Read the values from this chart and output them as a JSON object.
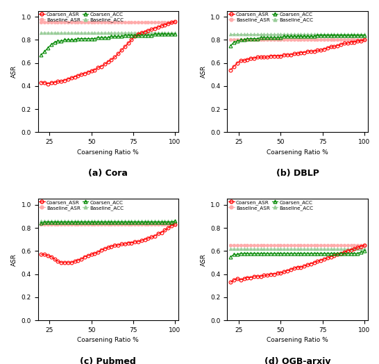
{
  "x": [
    20,
    22,
    24,
    26,
    28,
    30,
    32,
    34,
    36,
    38,
    40,
    42,
    44,
    46,
    48,
    50,
    52,
    54,
    56,
    58,
    60,
    62,
    64,
    66,
    68,
    70,
    72,
    74,
    76,
    78,
    80,
    82,
    84,
    86,
    88,
    90,
    92,
    94,
    96,
    98,
    100
  ],
  "cora_coarsen_asr": [
    0.43,
    0.43,
    0.42,
    0.43,
    0.43,
    0.44,
    0.44,
    0.45,
    0.46,
    0.47,
    0.48,
    0.49,
    0.5,
    0.51,
    0.52,
    0.53,
    0.54,
    0.56,
    0.57,
    0.59,
    0.61,
    0.63,
    0.65,
    0.68,
    0.71,
    0.74,
    0.77,
    0.8,
    0.83,
    0.85,
    0.86,
    0.87,
    0.88,
    0.89,
    0.9,
    0.91,
    0.92,
    0.93,
    0.94,
    0.95,
    0.96
  ],
  "cora_baseline_asr": [
    0.95,
    0.95,
    0.95,
    0.95,
    0.95,
    0.95,
    0.95,
    0.95,
    0.95,
    0.95,
    0.95,
    0.95,
    0.95,
    0.95,
    0.95,
    0.95,
    0.95,
    0.95,
    0.95,
    0.95,
    0.95,
    0.95,
    0.95,
    0.95,
    0.95,
    0.95,
    0.95,
    0.95,
    0.95,
    0.95,
    0.95,
    0.95,
    0.95,
    0.95,
    0.95,
    0.95,
    0.95,
    0.95,
    0.95,
    0.95,
    0.95
  ],
  "cora_coarsen_acc": [
    0.67,
    0.7,
    0.73,
    0.76,
    0.78,
    0.79,
    0.79,
    0.8,
    0.8,
    0.8,
    0.8,
    0.81,
    0.81,
    0.81,
    0.81,
    0.81,
    0.81,
    0.82,
    0.82,
    0.82,
    0.82,
    0.83,
    0.83,
    0.83,
    0.83,
    0.84,
    0.84,
    0.84,
    0.84,
    0.84,
    0.84,
    0.84,
    0.84,
    0.84,
    0.85,
    0.85,
    0.85,
    0.85,
    0.85,
    0.85,
    0.85
  ],
  "cora_baseline_acc": [
    0.86,
    0.86,
    0.86,
    0.86,
    0.86,
    0.86,
    0.86,
    0.86,
    0.86,
    0.86,
    0.86,
    0.86,
    0.86,
    0.86,
    0.86,
    0.86,
    0.86,
    0.86,
    0.86,
    0.86,
    0.86,
    0.86,
    0.86,
    0.86,
    0.86,
    0.86,
    0.86,
    0.86,
    0.86,
    0.86,
    0.86,
    0.86,
    0.86,
    0.86,
    0.86,
    0.86,
    0.86,
    0.86,
    0.86,
    0.86,
    0.86
  ],
  "dblp_coarsen_asr": [
    0.54,
    0.57,
    0.6,
    0.62,
    0.62,
    0.63,
    0.64,
    0.64,
    0.65,
    0.65,
    0.65,
    0.65,
    0.66,
    0.66,
    0.66,
    0.66,
    0.67,
    0.67,
    0.67,
    0.68,
    0.68,
    0.69,
    0.69,
    0.7,
    0.7,
    0.7,
    0.71,
    0.71,
    0.72,
    0.73,
    0.74,
    0.74,
    0.75,
    0.76,
    0.77,
    0.77,
    0.78,
    0.78,
    0.79,
    0.79,
    0.8
  ],
  "dblp_baseline_asr": [
    0.8,
    0.8,
    0.8,
    0.8,
    0.8,
    0.8,
    0.8,
    0.8,
    0.8,
    0.8,
    0.8,
    0.8,
    0.8,
    0.8,
    0.8,
    0.8,
    0.8,
    0.8,
    0.8,
    0.8,
    0.8,
    0.8,
    0.8,
    0.8,
    0.8,
    0.8,
    0.8,
    0.8,
    0.8,
    0.8,
    0.8,
    0.8,
    0.8,
    0.8,
    0.8,
    0.8,
    0.8,
    0.8,
    0.8,
    0.8,
    0.8
  ],
  "dblp_coarsen_acc": [
    0.75,
    0.78,
    0.79,
    0.8,
    0.8,
    0.81,
    0.81,
    0.81,
    0.81,
    0.82,
    0.82,
    0.82,
    0.82,
    0.82,
    0.82,
    0.82,
    0.83,
    0.83,
    0.83,
    0.83,
    0.83,
    0.83,
    0.83,
    0.83,
    0.83,
    0.83,
    0.84,
    0.84,
    0.84,
    0.84,
    0.84,
    0.84,
    0.84,
    0.84,
    0.84,
    0.84,
    0.84,
    0.84,
    0.84,
    0.84,
    0.84
  ],
  "dblp_baseline_acc": [
    0.85,
    0.85,
    0.85,
    0.85,
    0.85,
    0.85,
    0.85,
    0.85,
    0.85,
    0.85,
    0.85,
    0.85,
    0.85,
    0.85,
    0.85,
    0.85,
    0.85,
    0.85,
    0.85,
    0.85,
    0.85,
    0.85,
    0.85,
    0.85,
    0.85,
    0.85,
    0.85,
    0.85,
    0.85,
    0.85,
    0.85,
    0.85,
    0.85,
    0.85,
    0.85,
    0.85,
    0.85,
    0.85,
    0.85,
    0.85,
    0.85
  ],
  "pubmed_coarsen_asr": [
    0.57,
    0.57,
    0.56,
    0.55,
    0.53,
    0.51,
    0.5,
    0.5,
    0.5,
    0.5,
    0.51,
    0.52,
    0.53,
    0.55,
    0.56,
    0.57,
    0.58,
    0.59,
    0.61,
    0.62,
    0.63,
    0.64,
    0.65,
    0.65,
    0.66,
    0.66,
    0.67,
    0.67,
    0.68,
    0.68,
    0.69,
    0.7,
    0.71,
    0.72,
    0.73,
    0.75,
    0.76,
    0.78,
    0.8,
    0.82,
    0.83
  ],
  "pubmed_baseline_asr": [
    0.83,
    0.83,
    0.83,
    0.83,
    0.83,
    0.83,
    0.83,
    0.83,
    0.83,
    0.83,
    0.83,
    0.83,
    0.83,
    0.83,
    0.83,
    0.83,
    0.83,
    0.83,
    0.83,
    0.83,
    0.83,
    0.83,
    0.83,
    0.83,
    0.83,
    0.83,
    0.83,
    0.83,
    0.83,
    0.83,
    0.83,
    0.83,
    0.83,
    0.83,
    0.83,
    0.83,
    0.83,
    0.83,
    0.83,
    0.83,
    0.83
  ],
  "pubmed_coarsen_acc": [
    0.84,
    0.85,
    0.85,
    0.85,
    0.85,
    0.85,
    0.85,
    0.85,
    0.85,
    0.85,
    0.85,
    0.85,
    0.85,
    0.85,
    0.85,
    0.85,
    0.85,
    0.85,
    0.85,
    0.85,
    0.85,
    0.85,
    0.85,
    0.85,
    0.85,
    0.85,
    0.85,
    0.85,
    0.85,
    0.85,
    0.85,
    0.85,
    0.85,
    0.85,
    0.85,
    0.85,
    0.85,
    0.85,
    0.85,
    0.85,
    0.86
  ],
  "pubmed_baseline_acc": [
    0.86,
    0.86,
    0.86,
    0.86,
    0.86,
    0.86,
    0.86,
    0.86,
    0.86,
    0.86,
    0.86,
    0.86,
    0.86,
    0.86,
    0.86,
    0.86,
    0.86,
    0.86,
    0.86,
    0.86,
    0.86,
    0.86,
    0.86,
    0.86,
    0.86,
    0.86,
    0.86,
    0.86,
    0.86,
    0.86,
    0.86,
    0.86,
    0.86,
    0.86,
    0.86,
    0.86,
    0.86,
    0.86,
    0.86,
    0.86,
    0.86
  ],
  "ogb_coarsen_asr": [
    0.33,
    0.35,
    0.36,
    0.35,
    0.36,
    0.37,
    0.37,
    0.38,
    0.38,
    0.38,
    0.39,
    0.39,
    0.4,
    0.4,
    0.41,
    0.41,
    0.42,
    0.43,
    0.44,
    0.45,
    0.46,
    0.46,
    0.47,
    0.48,
    0.49,
    0.5,
    0.51,
    0.52,
    0.53,
    0.54,
    0.55,
    0.56,
    0.57,
    0.58,
    0.59,
    0.6,
    0.61,
    0.62,
    0.63,
    0.64,
    0.65
  ],
  "ogb_baseline_asr": [
    0.65,
    0.65,
    0.65,
    0.65,
    0.65,
    0.65,
    0.65,
    0.65,
    0.65,
    0.65,
    0.65,
    0.65,
    0.65,
    0.65,
    0.65,
    0.65,
    0.65,
    0.65,
    0.65,
    0.65,
    0.65,
    0.65,
    0.65,
    0.65,
    0.65,
    0.65,
    0.65,
    0.65,
    0.65,
    0.65,
    0.65,
    0.65,
    0.65,
    0.65,
    0.65,
    0.65,
    0.65,
    0.65,
    0.65,
    0.65,
    0.65
  ],
  "ogb_coarsen_acc": [
    0.55,
    0.57,
    0.57,
    0.58,
    0.58,
    0.58,
    0.58,
    0.58,
    0.58,
    0.58,
    0.58,
    0.58,
    0.58,
    0.58,
    0.58,
    0.58,
    0.58,
    0.58,
    0.58,
    0.58,
    0.58,
    0.58,
    0.58,
    0.58,
    0.58,
    0.58,
    0.58,
    0.58,
    0.58,
    0.58,
    0.58,
    0.58,
    0.58,
    0.58,
    0.58,
    0.58,
    0.58,
    0.58,
    0.58,
    0.59,
    0.6
  ],
  "ogb_baseline_acc": [
    0.62,
    0.62,
    0.62,
    0.62,
    0.62,
    0.62,
    0.62,
    0.62,
    0.62,
    0.62,
    0.62,
    0.62,
    0.62,
    0.62,
    0.62,
    0.62,
    0.62,
    0.62,
    0.62,
    0.62,
    0.62,
    0.62,
    0.62,
    0.62,
    0.62,
    0.62,
    0.62,
    0.62,
    0.62,
    0.62,
    0.62,
    0.62,
    0.62,
    0.62,
    0.62,
    0.62,
    0.62,
    0.62,
    0.62,
    0.62,
    0.62
  ],
  "coarsen_asr_color": "#ff0000",
  "baseline_asr_color": "#ffaaaa",
  "coarsen_acc_color": "#008800",
  "baseline_acc_color": "#99cc99",
  "subtitles": [
    "(a) Cora",
    "(b) DBLP",
    "(c) Pubmed",
    "(d) OGB-arxiv"
  ],
  "xlabel": "Coarsening Ratio %",
  "ylabel": "ASR",
  "xticks": [
    25,
    50,
    75,
    100
  ],
  "yticks": [
    0.0,
    0.2,
    0.4,
    0.6,
    0.8,
    1.0
  ],
  "ylim": [
    0.0,
    1.05
  ],
  "legend_labels": [
    "Coarsen_ASR",
    "Baseline_ASR",
    "Coarsen_ACC",
    "Baseline_ACC"
  ]
}
